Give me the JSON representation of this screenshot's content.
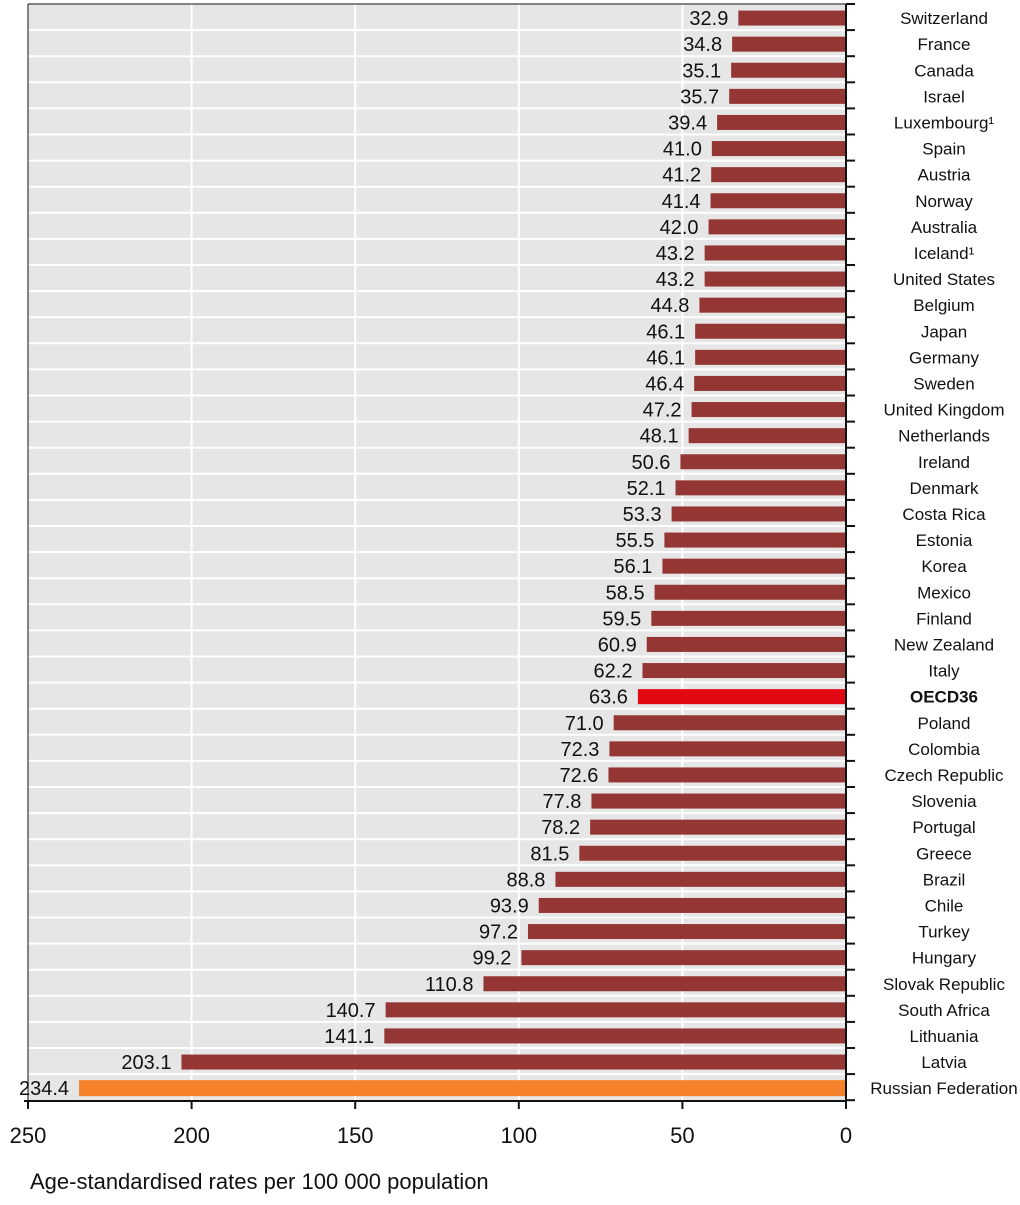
{
  "chart_data": {
    "type": "bar",
    "orientation": "horizontal",
    "x_direction": "reversed",
    "categories": [
      "Switzerland",
      "France",
      "Canada",
      "Israel",
      "Luxembourg¹",
      "Spain",
      "Austria",
      "Norway",
      "Australia",
      "Iceland¹",
      "United States",
      "Belgium",
      "Japan",
      "Germany",
      "Sweden",
      "United Kingdom",
      "Netherlands",
      "Ireland",
      "Denmark",
      "Costa Rica",
      "Estonia",
      "Korea",
      "Mexico",
      "Finland",
      "New Zealand",
      "Italy",
      "OECD36",
      "Poland",
      "Colombia",
      "Czech Republic",
      "Slovenia",
      "Portugal",
      "Greece",
      "Brazil",
      "Chile",
      "Turkey",
      "Hungary",
      "Slovak Republic",
      "South Africa",
      "Lithuania",
      "Latvia",
      "Russian Federation"
    ],
    "values": [
      32.9,
      34.8,
      35.1,
      35.7,
      39.4,
      41.0,
      41.2,
      41.4,
      42.0,
      43.2,
      43.2,
      44.8,
      46.1,
      46.1,
      46.4,
      47.2,
      48.1,
      50.6,
      52.1,
      53.3,
      55.5,
      56.1,
      58.5,
      59.5,
      60.9,
      62.2,
      63.6,
      71.0,
      72.3,
      72.6,
      77.8,
      78.2,
      81.5,
      88.8,
      93.9,
      97.2,
      99.2,
      110.8,
      140.7,
      141.1,
      203.1,
      234.4
    ],
    "value_labels": [
      "32.9",
      "34.8",
      "35.1",
      "35.7",
      "39.4",
      "41.0",
      "41.2",
      "41.4",
      "42.0",
      "43.2",
      "43.2",
      "44.8",
      "46.1",
      "46.1",
      "46.4",
      "47.2",
      "48.1",
      "50.6",
      "52.1",
      "53.3",
      "55.5",
      "56.1",
      "58.5",
      "59.5",
      "60.9",
      "62.2",
      "63.6",
      "71.0",
      "72.3",
      "72.6",
      "77.8",
      "78.2",
      "81.5",
      "88.8",
      "93.9",
      "97.2",
      "99.2",
      "110.8",
      "140.7",
      "141.1",
      "203.1",
      "234.4"
    ],
    "highlight": {
      "OECD36": "#e30613",
      "Russian Federation": "#f5822a"
    },
    "bold_categories": [
      "OECD36"
    ],
    "bar_color": "#943634",
    "xlim": [
      0,
      250
    ],
    "xticks": [
      250,
      200,
      150,
      100,
      50,
      0
    ],
    "xtick_labels": [
      "250",
      "200",
      "150",
      "100",
      "50",
      "0"
    ],
    "xlabel": "Age-standardised rates per 100 000 population",
    "grid": true,
    "plot_background": "#e6e6e6",
    "grid_color": "#ffffff",
    "legend": "none"
  }
}
